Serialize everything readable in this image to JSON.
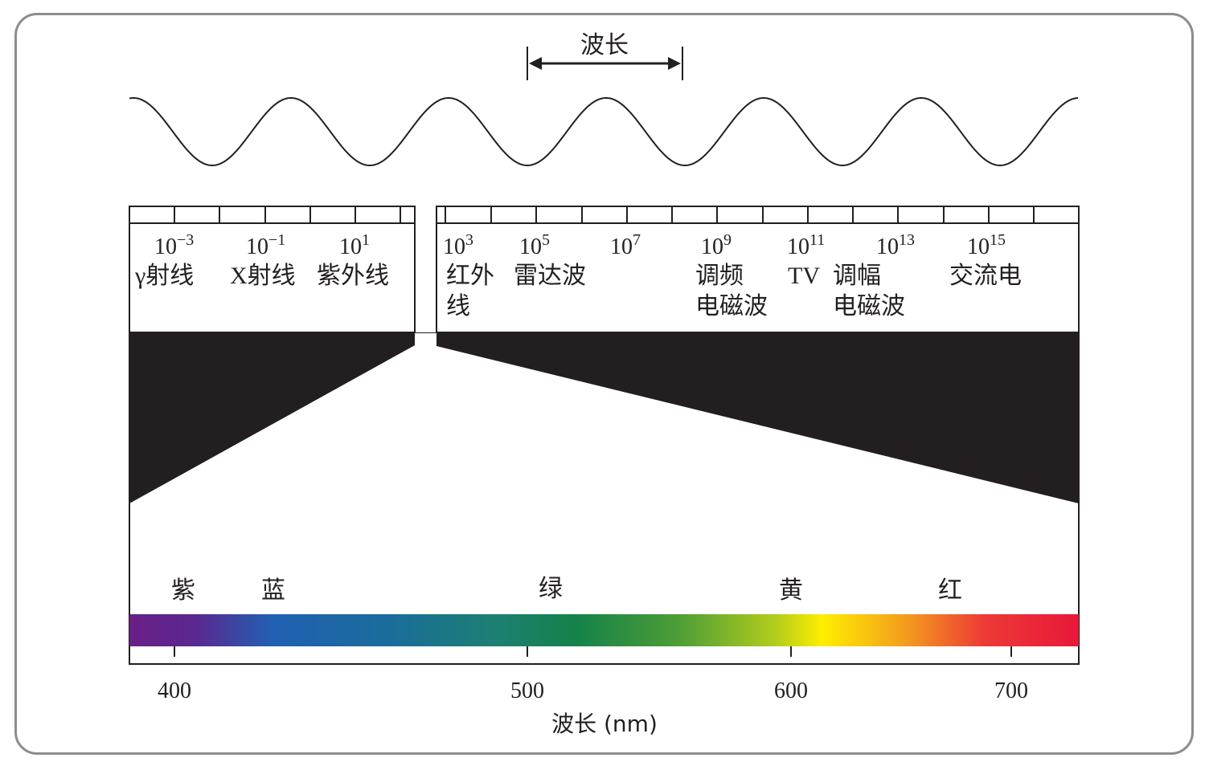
{
  "wavelength_label": "波长",
  "exponent_base": "10",
  "exponents_left": [
    "−3",
    "−1",
    "1"
  ],
  "exponents_right": [
    "3",
    "5",
    "7",
    "9",
    "11",
    "13",
    "15"
  ],
  "bands_left": [
    "γ射线",
    "X射线",
    "紫外线"
  ],
  "bands_right": {
    "infrared_line1": "红外",
    "infrared_line2": "线",
    "radar": "雷达波",
    "fm_line1": "调频",
    "fm_line2": "电磁波",
    "tv": "TV",
    "am_line1": "调幅",
    "am_line2": "电磁波",
    "ac": "交流电"
  },
  "colors": [
    "紫",
    "蓝",
    "绿",
    "黄",
    "红"
  ],
  "axis_ticks": [
    "400",
    "500",
    "600",
    "700"
  ],
  "axis_title": "波长 (nm)",
  "spectrum_stops": [
    "#6a1f86",
    "#2160b2",
    "#14824a",
    "#ffee00",
    "#e8183a"
  ]
}
